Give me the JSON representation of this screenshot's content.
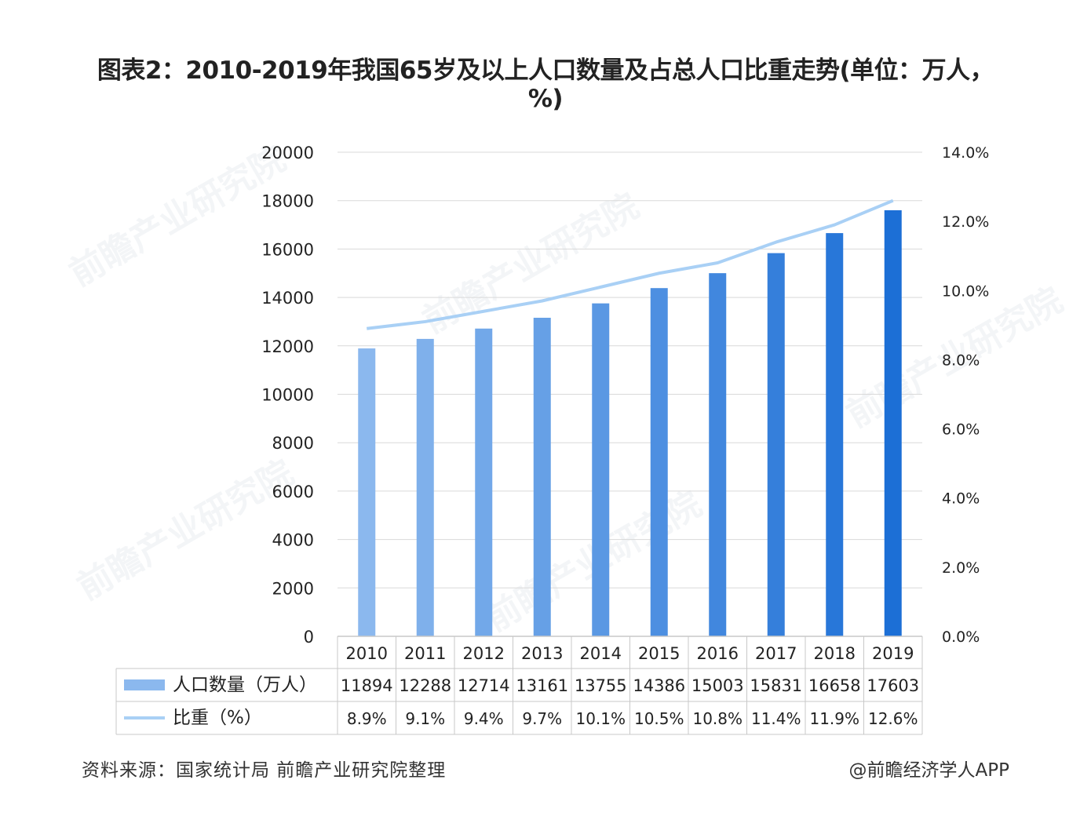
{
  "title": "图表2：2010-2019年我国65岁及以上人口数量及占总人口比重走势(单位：万人，%)",
  "source": "资料来源：国家统计局 前瞻产业研究院整理",
  "credit": "@前瞻经济学人APP",
  "watermark": "前瞻产业研究院",
  "chart_data": {
    "type": "bar",
    "categories": [
      "2010",
      "2011",
      "2012",
      "2013",
      "2014",
      "2015",
      "2016",
      "2017",
      "2018",
      "2019"
    ],
    "series": [
      {
        "name": "人口数量（万人）",
        "type": "bar",
        "axis": "left",
        "values": [
          11894,
          12288,
          12714,
          13161,
          13755,
          14386,
          15003,
          15831,
          16658,
          17603
        ],
        "labels": [
          "11894",
          "12288",
          "12714",
          "13161",
          "13755",
          "14386",
          "15003",
          "15831",
          "16658",
          "17603"
        ]
      },
      {
        "name": "比重（%）",
        "type": "line",
        "axis": "right",
        "values": [
          8.9,
          9.1,
          9.4,
          9.7,
          10.1,
          10.5,
          10.8,
          11.4,
          11.9,
          12.6
        ],
        "labels": [
          "8.9%",
          "9.1%",
          "9.4%",
          "9.7%",
          "10.1%",
          "10.5%",
          "10.8%",
          "11.4%",
          "11.9%",
          "12.6%"
        ]
      }
    ],
    "y_left": {
      "ylim": [
        0,
        20000
      ],
      "ticks": [
        "0",
        "2000",
        "4000",
        "6000",
        "8000",
        "10000",
        "12000",
        "14000",
        "16000",
        "18000",
        "20000"
      ]
    },
    "y_right": {
      "ylim": [
        0,
        14
      ],
      "ticks": [
        "0.0%",
        "2.0%",
        "4.0%",
        "6.0%",
        "8.0%",
        "10.0%",
        "12.0%",
        "14.0%"
      ]
    },
    "grid": true,
    "legend": "data table below chart",
    "colors": {
      "bar_start": "#8bb8ee",
      "bar_end": "#1c6fd6",
      "line": "#a9d0f5",
      "grid": "#d9d9d9",
      "table_border": "#c8c8c8"
    }
  }
}
